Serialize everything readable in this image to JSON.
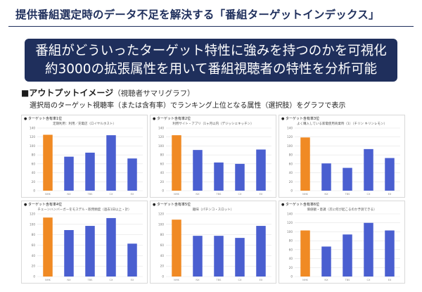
{
  "header": {
    "title": "提供番組選定時のデータ不足を解決する「番組ターゲットインデックス」"
  },
  "banner": {
    "line1": "番組がどういったターゲット特性に強みを持つのかを可視化",
    "line2": "約3000の拡張属性を用いて番組視聴者の特性を分析可能"
  },
  "section": {
    "bullet": "■",
    "heading": "アウトプットイメージ",
    "note": "（視聴者サマリグラフ）",
    "description": "選択局のターゲット視聴率（または含有率）でランキング上位となる属性（選択肢）をグラフで表示"
  },
  "colors": {
    "highlight": "#f08a24",
    "bar": "#4a5fd0",
    "grid": "#e3e3e3",
    "navy": "#1f2f5c"
  },
  "chart_data": [
    {
      "type": "bar",
      "title": "ターゲット含有率1位",
      "subtitle": "定期利用：利用／充電店（ロイヤルホスト）",
      "categories": [
        "NHK",
        "NX",
        "TBS",
        "CX",
        "EX"
      ],
      "values": [
        125,
        76,
        85,
        124,
        72
      ],
      "highlight_index": 0,
      "ylim": [
        0,
        140
      ],
      "yticks": [
        "140",
        "120",
        "100",
        "80",
        "60",
        "40",
        "20",
        "0"
      ]
    },
    {
      "type": "bar",
      "title": "ターゲット含有率2位",
      "subtitle": "利用サイト・アプリ（1ヶ月以内（デジッシェキッチン）",
      "categories": [
        "NHK",
        "NX",
        "TBS",
        "CX",
        "EX"
      ],
      "values": [
        124,
        91,
        63,
        60,
        92
      ],
      "highlight_index": 0,
      "ylim": [
        0,
        140
      ],
      "yticks": [
        "140",
        "120",
        "100",
        "80",
        "60",
        "40",
        "20",
        "0"
      ]
    },
    {
      "type": "bar",
      "title": "ターゲット含有率3位",
      "subtitle": "よく購入している家電使用商業時（1）（チリン キリンレモン）",
      "categories": [
        "NHK",
        "NX",
        "TBS",
        "CX",
        "EX"
      ],
      "values": [
        119,
        61,
        51,
        93,
        73
      ],
      "highlight_index": 0,
      "ylim": [
        0,
        140
      ],
      "yticks": [
        "140",
        "120",
        "100",
        "80",
        "60",
        "40",
        "20",
        "0"
      ]
    },
    {
      "type": "bar",
      "title": "ターゲット含有率4位",
      "subtitle": "チェーンハンバーガーをモスデル・飲用頻度（過去1日以上・計）",
      "categories": [
        "NHK",
        "NX",
        "TBS",
        "CX",
        "EX"
      ],
      "values": [
        113,
        89,
        97,
        112,
        63
      ],
      "highlight_index": 0,
      "ylim": [
        0,
        120
      ],
      "yticks": [
        "120",
        "100",
        "80",
        "60",
        "40",
        "20",
        "0"
      ]
    },
    {
      "type": "bar",
      "title": "ターゲット含有率5位",
      "subtitle": "趣味（パチンコ・スロット）",
      "categories": [
        "NHK",
        "NX",
        "TBS",
        "CX",
        "EX"
      ],
      "values": [
        109,
        78,
        78,
        74,
        97
      ],
      "highlight_index": 0,
      "ylim": [
        0,
        120
      ],
      "yticks": [
        "120",
        "100",
        "80",
        "60",
        "40",
        "20",
        "0"
      ]
    },
    {
      "type": "bar",
      "title": "ターゲット含有率6位",
      "subtitle": "価値観・意識（次に何が起こるのか予測できる）",
      "categories": [
        "NHK",
        "NX",
        "TBS",
        "CX",
        "EX"
      ],
      "values": [
        103,
        67,
        94,
        120,
        103
      ],
      "highlight_index": 0,
      "ylim": [
        0,
        140
      ],
      "yticks": [
        "140",
        "120",
        "100",
        "80",
        "60",
        "40",
        "20",
        "0"
      ]
    }
  ]
}
